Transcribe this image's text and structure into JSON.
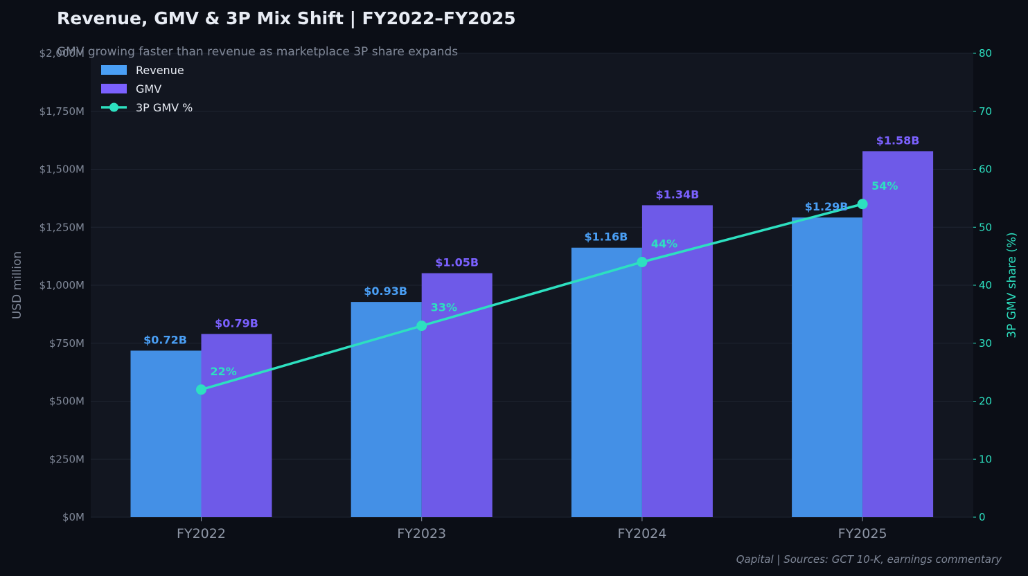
{
  "chart_data": {
    "type": "bar",
    "title": "Revenue, GMV & 3P Mix Shift  |  FY2022–FY2025",
    "subtitle": "GMV growing faster than revenue as marketplace 3P share expands",
    "categories": [
      "FY2022",
      "FY2023",
      "FY2024",
      "FY2025"
    ],
    "series": [
      {
        "name": "Revenue",
        "kind": "bar",
        "axis": "left",
        "values": [
          718,
          928,
          1162,
          1292
        ],
        "labels": [
          "$0.72B",
          "$0.93B",
          "$1.16B",
          "$1.29B"
        ],
        "color": "#4a9ff5"
      },
      {
        "name": "GMV",
        "kind": "bar",
        "axis": "left",
        "values": [
          790,
          1052,
          1345,
          1578
        ],
        "labels": [
          "$0.79B",
          "$1.05B",
          "$1.34B",
          "$1.58B"
        ],
        "color": "#7b61ff"
      },
      {
        "name": "3P GMV %",
        "kind": "line",
        "axis": "right",
        "values": [
          22,
          33,
          44,
          54
        ],
        "labels": [
          "22%",
          "33%",
          "44%",
          "54%"
        ],
        "color": "#2de0c0"
      }
    ],
    "ylabel": "USD million",
    "ylabel_right": "3P GMV share (%)",
    "ylim": [
      0,
      2000
    ],
    "ylim_right": [
      0,
      80
    ],
    "yticks": [
      0,
      250,
      500,
      750,
      1000,
      1250,
      1500,
      1750,
      2000
    ],
    "yticks_labels": [
      "$0M",
      "$250M",
      "$500M",
      "$750M",
      "$1,000M",
      "$1,250M",
      "$1,500M",
      "$1,750M",
      "$2,000M"
    ],
    "yticks_right": [
      0,
      10,
      20,
      30,
      40,
      50,
      60,
      70,
      80
    ],
    "yticks_right_labels": [
      "0",
      "10",
      "20",
      "30",
      "40",
      "50",
      "60",
      "70",
      "80"
    ],
    "grid": true,
    "legend_position": "top-left",
    "footer": "Qapital  |  Sources: GCT 10-K, earnings commentary"
  }
}
